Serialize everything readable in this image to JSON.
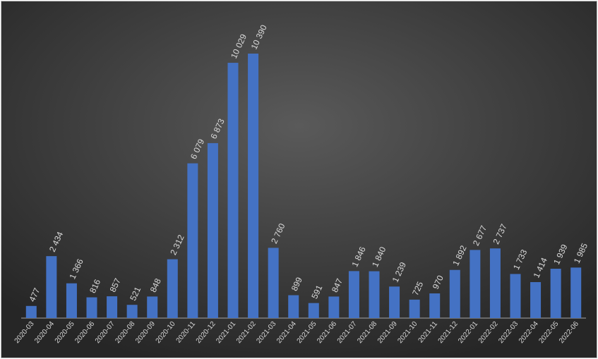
{
  "chart_data": {
    "type": "bar",
    "categories": [
      "2020-03",
      "2020-04",
      "2020-05",
      "2020-06",
      "2020-07",
      "2020-08",
      "2020-09",
      "2020-10",
      "2020-11",
      "2020-12",
      "2021-01",
      "2021-02",
      "2021-03",
      "2021-04",
      "2021-05",
      "2021-06",
      "2021-07",
      "2021-08",
      "2021-09",
      "2021-10",
      "2021-11",
      "2021-12",
      "2022-01",
      "2022-02",
      "2022-03",
      "2022-04",
      "2022-05",
      "2022-06"
    ],
    "values": [
      477,
      2434,
      1366,
      816,
      857,
      521,
      848,
      2312,
      6079,
      6873,
      10029,
      10390,
      2760,
      899,
      591,
      847,
      1846,
      1840,
      1239,
      725,
      970,
      1892,
      2677,
      2737,
      1733,
      1414,
      1939,
      1985
    ],
    "value_labels": [
      "477",
      "2 434",
      "1 366",
      "816",
      "857",
      "521",
      "848",
      "2 312",
      "6 079",
      "6 873",
      "10 029",
      "10 390",
      "2 760",
      "899",
      "591",
      "847",
      "1 846",
      "1 840",
      "1 239",
      "725",
      "970",
      "1 892",
      "2 677",
      "2 737",
      "1 733",
      "1 414",
      "1 939",
      "1 985"
    ],
    "color": "#4472c4"
  }
}
